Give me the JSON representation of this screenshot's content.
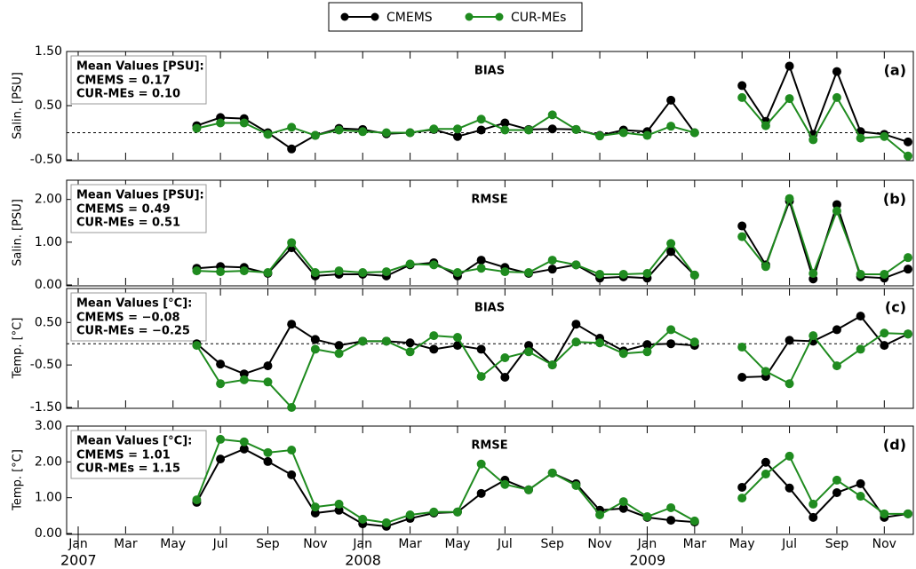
{
  "chart_data": [
    {
      "type": "line",
      "title": "BIAS",
      "panel_label": "(a)",
      "ylabel": "Salin. [PSU]",
      "annotation": {
        "heading": "Mean Values [PSU]:",
        "lines": [
          "CMEMS = 0.17",
          "CUR-MEs = 0.10"
        ]
      },
      "x": [
        "2007-06",
        "2007-07",
        "2007-08",
        "2007-09",
        "2007-10",
        "2007-11",
        "2007-12",
        "2008-01",
        "2008-02",
        "2008-03",
        "2008-04",
        "2008-05",
        "2008-06",
        "2008-07",
        "2008-08",
        "2008-09",
        "2008-10",
        "2008-11",
        "2008-12",
        "2009-01",
        "2009-02",
        "2009-03",
        "2009-04",
        "2009-05",
        "2009-06",
        "2009-07",
        "2009-08",
        "2009-09",
        "2009-10",
        "2009-11",
        "2009-12"
      ],
      "xlim": [
        "2007-01",
        "2009-12"
      ],
      "ylim": [
        -0.5,
        1.5
      ],
      "yticks": [
        {
          "value": -0.5,
          "label": "-0.50"
        },
        {
          "value": 0.5,
          "label": "0.50"
        },
        {
          "value": 1.5,
          "label": "1.50"
        }
      ],
      "zero_line": true,
      "series": [
        {
          "name": "CMEMS",
          "color": "#000000",
          "values": [
            0.13,
            0.28,
            0.26,
            0.0,
            -0.3,
            -0.05,
            0.08,
            0.06,
            -0.02,
            0.0,
            0.06,
            -0.07,
            0.05,
            0.18,
            0.06,
            0.07,
            0.06,
            -0.05,
            0.05,
            0.02,
            0.6,
            0.0,
            null,
            0.87,
            0.21,
            1.23,
            -0.03,
            1.13,
            0.02,
            -0.03,
            -0.17
          ]
        },
        {
          "name": "CUR-MEs",
          "color": "#1f8b1f",
          "values": [
            0.08,
            0.18,
            0.18,
            -0.03,
            0.1,
            -0.05,
            0.05,
            0.02,
            0.0,
            0.0,
            0.07,
            0.07,
            0.25,
            0.05,
            0.05,
            0.33,
            0.06,
            -0.06,
            0.0,
            -0.05,
            0.12,
            0.0,
            null,
            0.65,
            0.13,
            0.63,
            -0.13,
            0.65,
            -0.1,
            -0.07,
            -0.43
          ]
        }
      ]
    },
    {
      "type": "line",
      "title": "RMSE",
      "panel_label": "(b)",
      "ylabel": "Salin. [PSU]",
      "annotation": {
        "heading": "Mean Values [PSU]:",
        "lines": [
          "CMEMS = 0.49",
          "CUR-MEs = 0.51"
        ]
      },
      "x": [
        "2007-06",
        "2007-07",
        "2007-08",
        "2007-09",
        "2007-10",
        "2007-11",
        "2007-12",
        "2008-01",
        "2008-02",
        "2008-03",
        "2008-04",
        "2008-05",
        "2008-06",
        "2008-07",
        "2008-08",
        "2008-09",
        "2008-10",
        "2008-11",
        "2008-12",
        "2009-01",
        "2009-02",
        "2009-03",
        "2009-04",
        "2009-05",
        "2009-06",
        "2009-07",
        "2009-08",
        "2009-09",
        "2009-10",
        "2009-11",
        "2009-12"
      ],
      "xlim": [
        "2007-01",
        "2009-12"
      ],
      "ylim": [
        0,
        2.45
      ],
      "yticks": [
        {
          "value": 0,
          "label": "0.00"
        },
        {
          "value": 1,
          "label": "1.00"
        },
        {
          "value": 2,
          "label": "2.00"
        }
      ],
      "zero_line": false,
      "series": [
        {
          "color": "#000000",
          "values": [
            0.39,
            0.43,
            0.41,
            0.27,
            0.87,
            0.21,
            0.25,
            0.25,
            0.21,
            0.47,
            0.52,
            0.21,
            0.58,
            0.41,
            0.27,
            0.37,
            0.47,
            0.16,
            0.19,
            0.16,
            0.78,
            0.23,
            null,
            1.38,
            0.47,
            1.96,
            0.14,
            1.88,
            0.19,
            0.16,
            0.37
          ]
        },
        {
          "color": "#1f8b1f",
          "values": [
            0.33,
            0.31,
            0.33,
            0.29,
            0.99,
            0.29,
            0.33,
            0.29,
            0.31,
            0.49,
            0.47,
            0.29,
            0.39,
            0.31,
            0.29,
            0.58,
            0.47,
            0.25,
            0.25,
            0.27,
            0.97,
            0.23,
            null,
            1.13,
            0.43,
            2.02,
            0.27,
            1.73,
            0.25,
            0.25,
            0.64
          ]
        }
      ]
    },
    {
      "type": "line",
      "title": "BIAS",
      "panel_label": "(c)",
      "ylabel": "Temp. [°C]",
      "annotation": {
        "heading": "Mean Values [°C]:",
        "lines": [
          "CMEMS = −0.08",
          "CUR-MEs = −0.25"
        ]
      },
      "x": [
        "2007-06",
        "2007-07",
        "2007-08",
        "2007-09",
        "2007-10",
        "2007-11",
        "2007-12",
        "2008-01",
        "2008-02",
        "2008-03",
        "2008-04",
        "2008-05",
        "2008-06",
        "2008-07",
        "2008-08",
        "2008-09",
        "2008-10",
        "2008-11",
        "2008-12",
        "2009-01",
        "2009-02",
        "2009-03",
        "2009-04",
        "2009-05",
        "2009-06",
        "2009-07",
        "2009-08",
        "2009-09",
        "2009-10",
        "2009-11",
        "2009-12"
      ],
      "xlim": [
        "2007-01",
        "2009-12"
      ],
      "ylim": [
        -1.5,
        1.3
      ],
      "yticks": [
        {
          "value": -1.5,
          "label": "-1.50"
        },
        {
          "value": -0.5,
          "label": "-0.50"
        },
        {
          "value": 0.5,
          "label": "0.50"
        }
      ],
      "zero_line": true,
      "series": [
        {
          "color": "#000000",
          "values": [
            0.0,
            -0.48,
            -0.71,
            -0.52,
            0.46,
            0.1,
            -0.04,
            0.06,
            0.06,
            0.02,
            -0.13,
            -0.04,
            -0.13,
            -0.79,
            -0.04,
            -0.5,
            0.46,
            0.13,
            -0.17,
            -0.02,
            0.0,
            -0.04,
            null,
            -0.79,
            -0.77,
            0.08,
            0.06,
            0.33,
            0.65,
            -0.04,
            0.23
          ]
        },
        {
          "color": "#1f8b1f",
          "values": [
            -0.04,
            -0.94,
            -0.85,
            -0.9,
            -1.5,
            -0.13,
            -0.23,
            0.06,
            0.06,
            -0.19,
            0.19,
            0.15,
            -0.77,
            -0.33,
            -0.19,
            -0.5,
            0.04,
            0.02,
            -0.23,
            -0.19,
            0.33,
            0.04,
            null,
            -0.08,
            -0.65,
            -0.94,
            0.19,
            -0.52,
            -0.13,
            0.25,
            0.23
          ]
        }
      ]
    },
    {
      "type": "line",
      "title": "RMSE",
      "panel_label": "(d)",
      "ylabel": "Temp. [°C]",
      "annotation": {
        "heading": "Mean Values [°C]:",
        "lines": [
          "CMEMS = 1.01",
          "CUR-MEs = 1.15"
        ]
      },
      "x": [
        "2007-06",
        "2007-07",
        "2007-08",
        "2007-09",
        "2007-10",
        "2007-11",
        "2007-12",
        "2008-01",
        "2008-02",
        "2008-03",
        "2008-04",
        "2008-05",
        "2008-06",
        "2008-07",
        "2008-08",
        "2008-09",
        "2008-10",
        "2008-11",
        "2008-12",
        "2009-01",
        "2009-02",
        "2009-03",
        "2009-04",
        "2009-05",
        "2009-06",
        "2009-07",
        "2009-08",
        "2009-09",
        "2009-10",
        "2009-11",
        "2009-12"
      ],
      "xlim": [
        "2007-01",
        "2009-12"
      ],
      "ylim": [
        0,
        3
      ],
      "yticks": [
        {
          "value": 0,
          "label": "0.00"
        },
        {
          "value": 1,
          "label": "1.00"
        },
        {
          "value": 2,
          "label": "2.00"
        },
        {
          "value": 3,
          "label": "3.00"
        }
      ],
      "zero_line": false,
      "xticks": [
        {
          "value": "2007-01",
          "label": "Jan"
        },
        {
          "value": "2007-03",
          "label": "Mar"
        },
        {
          "value": "2007-05",
          "label": "May"
        },
        {
          "value": "2007-07",
          "label": "Jul"
        },
        {
          "value": "2007-09",
          "label": "Sep"
        },
        {
          "value": "2007-11",
          "label": "Nov"
        },
        {
          "value": "2008-01",
          "label": "Jan"
        },
        {
          "value": "2008-03",
          "label": "Mar"
        },
        {
          "value": "2008-05",
          "label": "May"
        },
        {
          "value": "2008-07",
          "label": "Jul"
        },
        {
          "value": "2008-09",
          "label": "Sep"
        },
        {
          "value": "2008-11",
          "label": "Nov"
        },
        {
          "value": "2009-01",
          "label": "Jan"
        },
        {
          "value": "2009-03",
          "label": "Mar"
        },
        {
          "value": "2009-05",
          "label": "May"
        },
        {
          "value": "2009-07",
          "label": "Jul"
        },
        {
          "value": "2009-09",
          "label": "Sep"
        },
        {
          "value": "2009-11",
          "label": "Nov"
        }
      ],
      "years": [
        {
          "value": "2007-01",
          "label": "2007"
        },
        {
          "value": "2008-01",
          "label": "2008"
        },
        {
          "value": "2009-01",
          "label": "2009"
        }
      ],
      "series": [
        {
          "color": "#000000",
          "values": [
            0.87,
            2.08,
            2.36,
            2.01,
            1.64,
            0.57,
            0.65,
            0.27,
            0.2,
            0.42,
            0.57,
            0.6,
            1.12,
            1.49,
            1.22,
            1.69,
            1.39,
            0.65,
            0.7,
            0.45,
            0.37,
            0.32,
            null,
            1.29,
            1.99,
            1.27,
            0.45,
            1.14,
            1.39,
            0.45,
            0.55
          ]
        },
        {
          "color": "#1f8b1f",
          "values": [
            0.94,
            2.63,
            2.56,
            2.26,
            2.33,
            0.74,
            0.82,
            0.4,
            0.3,
            0.52,
            0.6,
            0.6,
            1.94,
            1.37,
            1.22,
            1.69,
            1.34,
            0.52,
            0.89,
            0.47,
            0.72,
            0.35,
            null,
            0.99,
            1.66,
            2.16,
            0.82,
            1.49,
            1.04,
            0.55,
            0.55
          ]
        }
      ]
    }
  ]
}
